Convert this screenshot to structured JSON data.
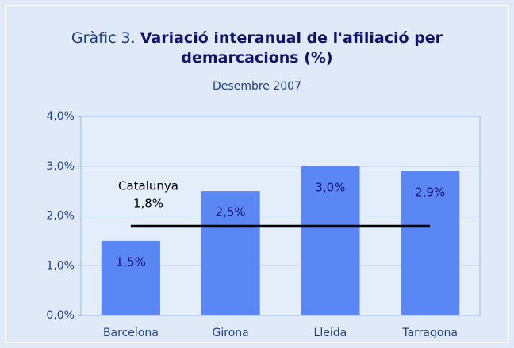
{
  "chart_data": {
    "type": "bar",
    "title_prefix": "Gràfic 3.",
    "title": "Variació interanual de l'afiliació per demarcacions (%)",
    "subtitle": "Desembre 2007",
    "categories": [
      "Barcelona",
      "Girona",
      "Lleida",
      "Tarragona"
    ],
    "values": [
      1.5,
      2.5,
      3.0,
      2.9
    ],
    "value_labels": [
      "1,5%",
      "2,5%",
      "3,0%",
      "2,9%"
    ],
    "color": "#5b87f4",
    "ylim": [
      0,
      4
    ],
    "yticks": [
      {
        "value": 0,
        "label": "0,0%"
      },
      {
        "value": 1,
        "label": "1,0%"
      },
      {
        "value": 2,
        "label": "2,0%"
      },
      {
        "value": 3,
        "label": "3,0%"
      },
      {
        "value": 4,
        "label": "4,0%"
      }
    ],
    "grid": true,
    "reference": {
      "name": "Catalunya",
      "value": 1.8,
      "value_label": "1,8%",
      "color": "#000000"
    }
  }
}
